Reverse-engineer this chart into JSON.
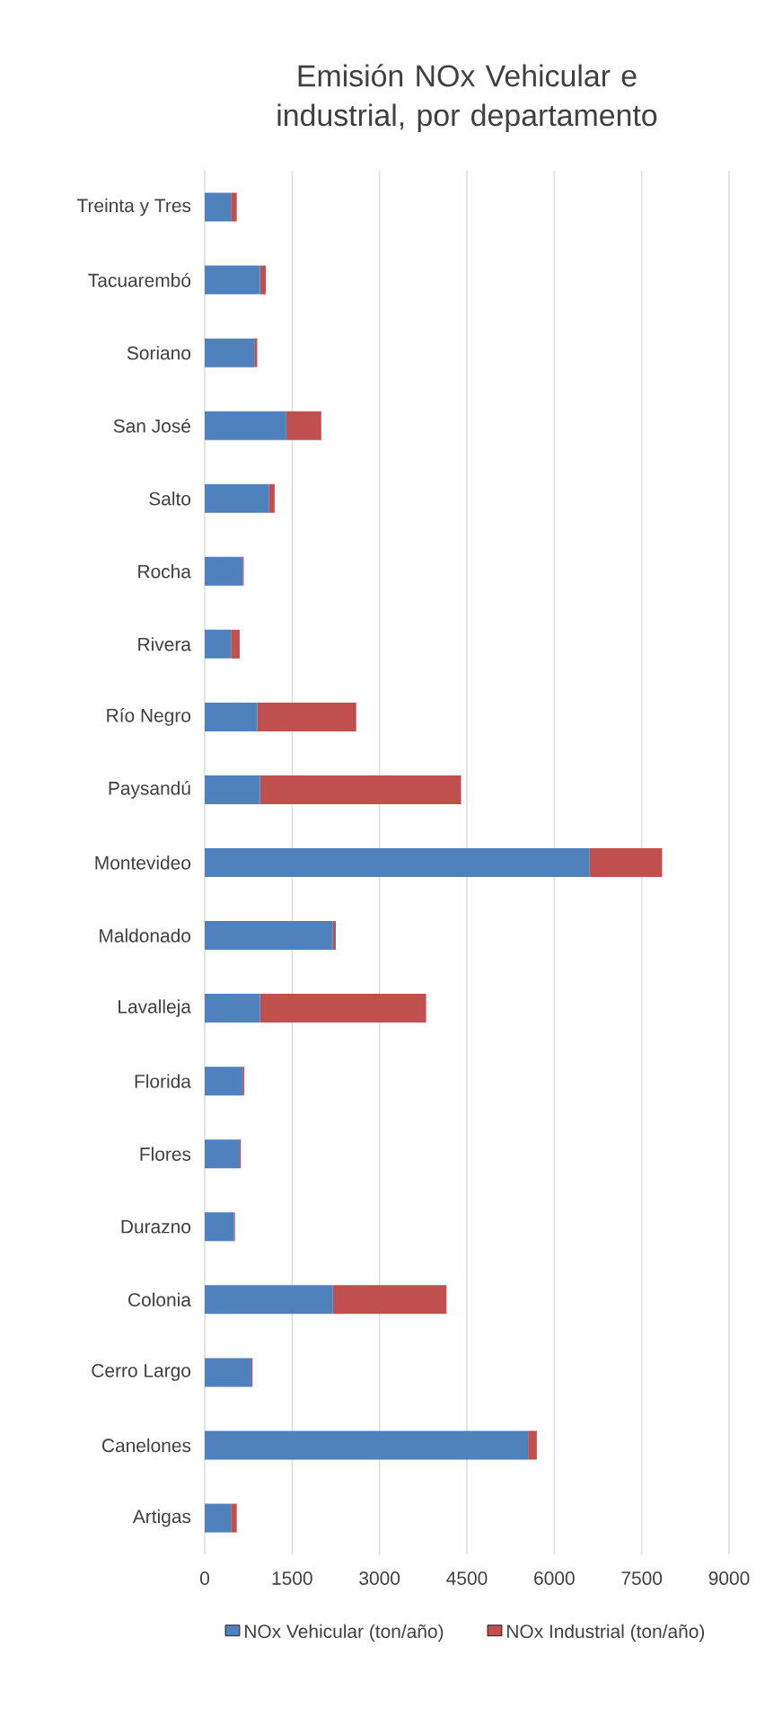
{
  "chart_data": {
    "type": "bar",
    "orientation": "horizontal",
    "stacked": true,
    "title": "Emisión NOx Vehicular e industrial, por departamento",
    "categories": [
      "Treinta y Tres",
      "Tacuarembó",
      "Soriano",
      "San José",
      "Salto",
      "Rocha",
      "Rivera",
      "Río Negro",
      "Paysandú",
      "Montevideo",
      "Maldonado",
      "Lavalleja",
      "Florida",
      "Flores",
      "Durazno",
      "Colonia",
      "Cerro Largo",
      "Canelones",
      "Artigas"
    ],
    "series": [
      {
        "name": "NOx Vehicular (ton/año)",
        "color": "#4f81bd",
        "values": [
          450,
          950,
          850,
          1400,
          1100,
          650,
          450,
          900,
          950,
          6600,
          2200,
          950,
          650,
          600,
          500,
          2200,
          800,
          5550,
          450
        ]
      },
      {
        "name": "NOx Industrial (ton/año)",
        "color": "#c0504d",
        "values": [
          100,
          100,
          50,
          600,
          100,
          20,
          150,
          1700,
          3450,
          1250,
          50,
          2850,
          30,
          20,
          20,
          1950,
          20,
          150,
          100
        ]
      }
    ],
    "xlim": [
      0,
      9000
    ],
    "xticks": [
      0,
      1500,
      3000,
      4500,
      6000,
      7500,
      9000
    ],
    "grid": "x",
    "legend": "bottom"
  }
}
